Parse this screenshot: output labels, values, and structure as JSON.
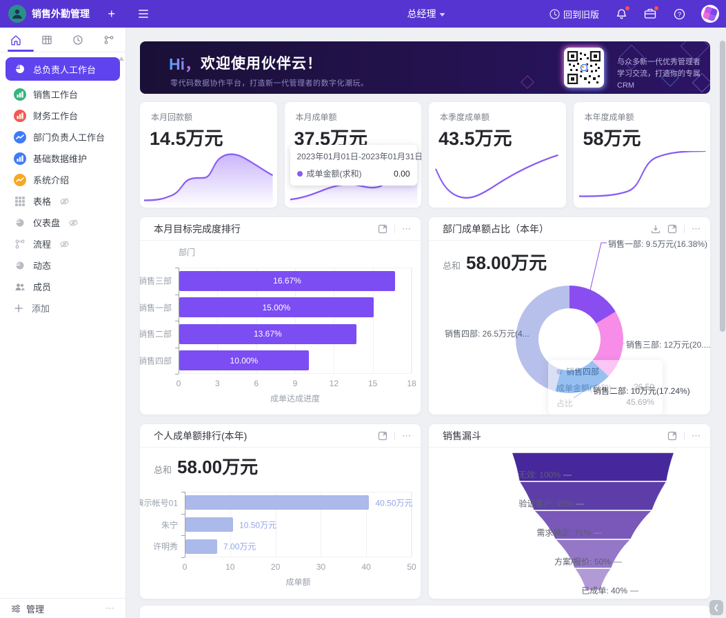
{
  "topbar": {
    "app_title": "销售外勤管理",
    "add": "+",
    "role": "总经理",
    "back_to_old": "回到旧版"
  },
  "sidebar": {
    "items": [
      {
        "label": "总负责人工作台",
        "icon": "pie",
        "iconBg": "#ffffff",
        "active": true
      },
      {
        "label": "销售工作台",
        "icon": "bar",
        "iconBg": "#36b37e"
      },
      {
        "label": "财务工作台",
        "icon": "bar",
        "iconBg": "#f15b50"
      },
      {
        "label": "部门负责人工作台",
        "icon": "line",
        "iconBg": "#3e7bfa"
      },
      {
        "label": "基础数据维护",
        "icon": "bar",
        "iconBg": "#3e7bfa"
      },
      {
        "label": "系统介绍",
        "icon": "line",
        "iconBg": "#f7a823"
      },
      {
        "label": "表格",
        "icon": "grid",
        "gray": true,
        "eye": true
      },
      {
        "label": "仪表盘",
        "icon": "pie",
        "gray": true,
        "eye": true
      },
      {
        "label": "流程",
        "icon": "flow",
        "gray": true,
        "eye": true
      },
      {
        "label": "动态",
        "icon": "pie",
        "gray": true
      },
      {
        "label": "成员",
        "icon": "people",
        "gray": true
      },
      {
        "label": "添加",
        "icon": "plus",
        "gray": true,
        "add": true
      }
    ],
    "manage_label": "管理"
  },
  "banner": {
    "hi": "Hi，",
    "title": "欢迎使用伙伴云！",
    "subtitle": "零代码数据协作平台，打造新一代管理者的数字化潮玩。",
    "qr_line1": "与众多新一代优秀管理者",
    "qr_line2": "学习交流，打造你的专属CRM"
  },
  "stats": [
    {
      "label": "本月回款额",
      "value": "14.5万元",
      "trend": "area"
    },
    {
      "label": "本月成单额",
      "value": "37.5万元",
      "trend": "area2",
      "tooltip": {
        "date": "2023年01月01日-2023年01月31日",
        "series": "成单金额(求和)",
        "value": "0.00"
      }
    },
    {
      "label": "本季度成单额",
      "value": "43.5万元",
      "trend": "dip"
    },
    {
      "label": "本年度成单额",
      "value": "58万元",
      "trend": "scurve"
    }
  ],
  "charts": {
    "dept_progress": {
      "type": "bar",
      "title": "本月目标完成度排行",
      "axis_title": "部门",
      "xlabel": "成单达成进度",
      "ticks": [
        0,
        3,
        6,
        9,
        12,
        15,
        18
      ],
      "xmax": 18,
      "categories": [
        "销售三部",
        "销售一部",
        "销售二部",
        "销售四部"
      ],
      "values": [
        16.67,
        15.0,
        13.67,
        10.0
      ],
      "labels": [
        "16.67%",
        "15.00%",
        "13.67%",
        "10.00%"
      ],
      "bar_color": "#7b4df3"
    },
    "dept_share": {
      "type": "donut",
      "title": "部门成单额占比（本年）",
      "total_label": "总和",
      "total": "58.00万元",
      "slices": [
        {
          "name": "销售一部",
          "pct": 16.38,
          "color": "#8a4df0",
          "label": "销售一部: 9.5万元(16.38%)"
        },
        {
          "name": "销售三部",
          "pct": 20.69,
          "color": "#f78de8",
          "label": "销售三部: 12万元(20...."
        },
        {
          "name": "销售二部",
          "pct": 17.24,
          "color": "#2f82e4",
          "label": "销售二部: 10万元(17.24%)"
        },
        {
          "name": "销售四部",
          "pct": 45.69,
          "color": "#b7c0ea",
          "label": "销售四部: 26.5万元(4..."
        }
      ],
      "tooltip": {
        "name": "销售四部",
        "row1_label": "成单金额(求和)",
        "row1_value": "26.50",
        "row2_label": "占比",
        "row2_value": "45.69%"
      }
    },
    "personal_rank": {
      "type": "bar",
      "title": "个人成单额排行(本年)",
      "total_label": "总和",
      "total": "58.00万元",
      "xlabel": "成单额",
      "ticks": [
        0,
        10,
        20,
        30,
        40,
        50
      ],
      "xmax": 50,
      "categories": [
        "演示帐号01",
        "朱宁",
        "许明秀"
      ],
      "values": [
        40.5,
        10.5,
        7.0
      ],
      "labels": [
        "40.50万元",
        "10.50万元",
        "7.00万元"
      ],
      "bar_color": "#abb9eb"
    },
    "funnel": {
      "type": "funnel",
      "title": "销售漏斗",
      "stages": [
        {
          "label": "无效: 100%",
          "pct": 100,
          "color": "#47289c"
        },
        {
          "label": "验证客户: 93%",
          "pct": 93,
          "color": "#5d3ea9"
        },
        {
          "label": "需求确定: 71%",
          "pct": 71,
          "color": "#7a58b9"
        },
        {
          "label": "方案/报价: 50%",
          "pct": 50,
          "color": "#9477c7"
        },
        {
          "label": "已成单: 40%",
          "pct": 40,
          "color": "#b29ad6"
        }
      ]
    }
  }
}
